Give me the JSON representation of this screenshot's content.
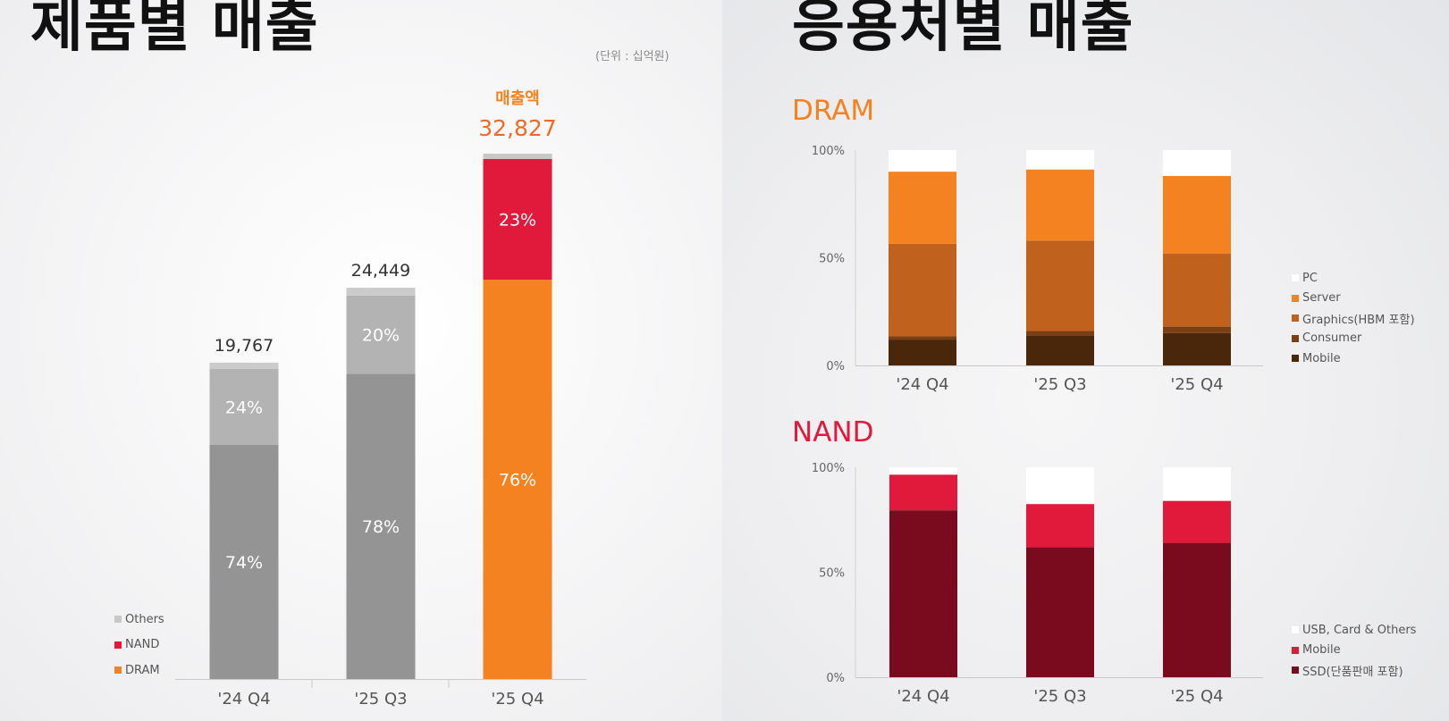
{
  "left": {
    "title": "제품별 매출",
    "unit_note": "(단위 : 십억원)",
    "total_label": "매출액",
    "legend": [
      {
        "label": "Others",
        "color": "#c8c8c8"
      },
      {
        "label": "NAND",
        "color": "#e1193a"
      },
      {
        "label": "DRAM",
        "color": "#f58220"
      }
    ]
  },
  "right": {
    "title": "응용처별 매출",
    "dram_title": "DRAM",
    "nand_title": "NAND",
    "dram_legend": [
      {
        "label": "PC",
        "color": "#ffffff"
      },
      {
        "label": "Server",
        "color": "#f58220"
      },
      {
        "label": "Graphics(HBM 포함)",
        "color": "#c0621e"
      },
      {
        "label": "Consumer",
        "color": "#7a3f13"
      },
      {
        "label": "Mobile",
        "color": "#4a260a"
      }
    ],
    "nand_legend": [
      {
        "label": "USB, Card & Others",
        "color": "#ffffff"
      },
      {
        "label": "Mobile",
        "color": "#e1193a"
      },
      {
        "label": "SSD(단품판매 포함)",
        "color": "#7a0a1e"
      }
    ]
  },
  "chart_data": [
    {
      "type": "bar",
      "stacked": true,
      "title": "제품별 매출",
      "categories": [
        "'24 Q4",
        "'25 Q3",
        "'25 Q4"
      ],
      "totals": [
        19767,
        24449,
        32827
      ],
      "totals_display": [
        "19,767",
        "24,449",
        "32,827"
      ],
      "highlight_category": "'25 Q4",
      "series": [
        {
          "name": "DRAM",
          "values": [
            14627,
            19070,
            24949
          ],
          "labels": [
            "74%",
            "78%",
            "76%"
          ]
        },
        {
          "name": "NAND",
          "values": [
            4744,
            4890,
            7550
          ],
          "labels": [
            "24%",
            "20%",
            "23%"
          ]
        },
        {
          "name": "Others",
          "values": [
            396,
            489,
            328
          ],
          "labels": [
            "",
            "",
            ""
          ]
        }
      ]
    },
    {
      "type": "bar",
      "stacked": true,
      "title": "DRAM",
      "categories": [
        "'24 Q4",
        "'25 Q3",
        "'25 Q4"
      ],
      "yticks": [
        "0%",
        "50%",
        "100%"
      ],
      "ylim": [
        0,
        100
      ],
      "series": [
        {
          "name": "Mobile",
          "values": [
            12,
            14,
            15
          ]
        },
        {
          "name": "Consumer",
          "values": [
            1.5,
            2,
            3
          ]
        },
        {
          "name": "Graphics(HBM 포함)",
          "values": [
            43,
            42,
            34
          ]
        },
        {
          "name": "Server",
          "values": [
            33.5,
            33,
            36
          ]
        },
        {
          "name": "PC",
          "values": [
            10,
            9,
            12
          ]
        }
      ]
    },
    {
      "type": "bar",
      "stacked": true,
      "title": "NAND",
      "categories": [
        "'24 Q4",
        "'25 Q3",
        "'25 Q4"
      ],
      "yticks": [
        "0%",
        "50%",
        "100%"
      ],
      "ylim": [
        0,
        100
      ],
      "series": [
        {
          "name": "SSD(단품판매 포함)",
          "values": [
            79.5,
            62,
            64
          ]
        },
        {
          "name": "Mobile",
          "values": [
            17,
            20.5,
            20
          ]
        },
        {
          "name": "USB, Card & Others",
          "values": [
            3.5,
            17.5,
            16
          ]
        }
      ]
    }
  ]
}
